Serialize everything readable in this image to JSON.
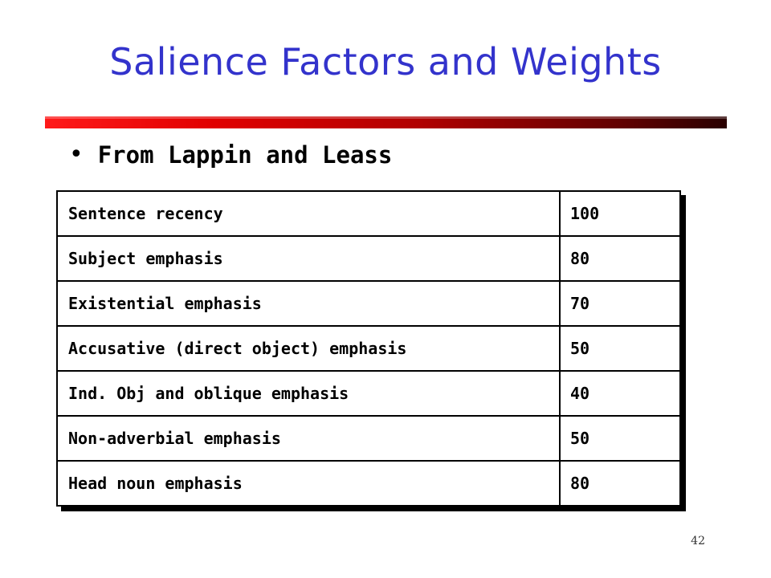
{
  "slide": {
    "title": "Salience Factors and Weights",
    "bullet": "From Lappin and Leass",
    "page_number": "42",
    "colors": {
      "title": "#3333cc",
      "rule_start": "#ff1a1a",
      "rule_end": "#2a0000"
    }
  },
  "table": {
    "rows": [
      {
        "factor": "Sentence recency",
        "weight": "100"
      },
      {
        "factor": "Subject emphasis",
        "weight": "80"
      },
      {
        "factor": "Existential emphasis",
        "weight": "70"
      },
      {
        "factor": "Accusative (direct object) emphasis",
        "weight": "50"
      },
      {
        "factor": "Ind. Obj and oblique emphasis",
        "weight": "40"
      },
      {
        "factor": "Non-adverbial emphasis",
        "weight": "50"
      },
      {
        "factor": "Head noun emphasis",
        "weight": "80"
      }
    ]
  }
}
